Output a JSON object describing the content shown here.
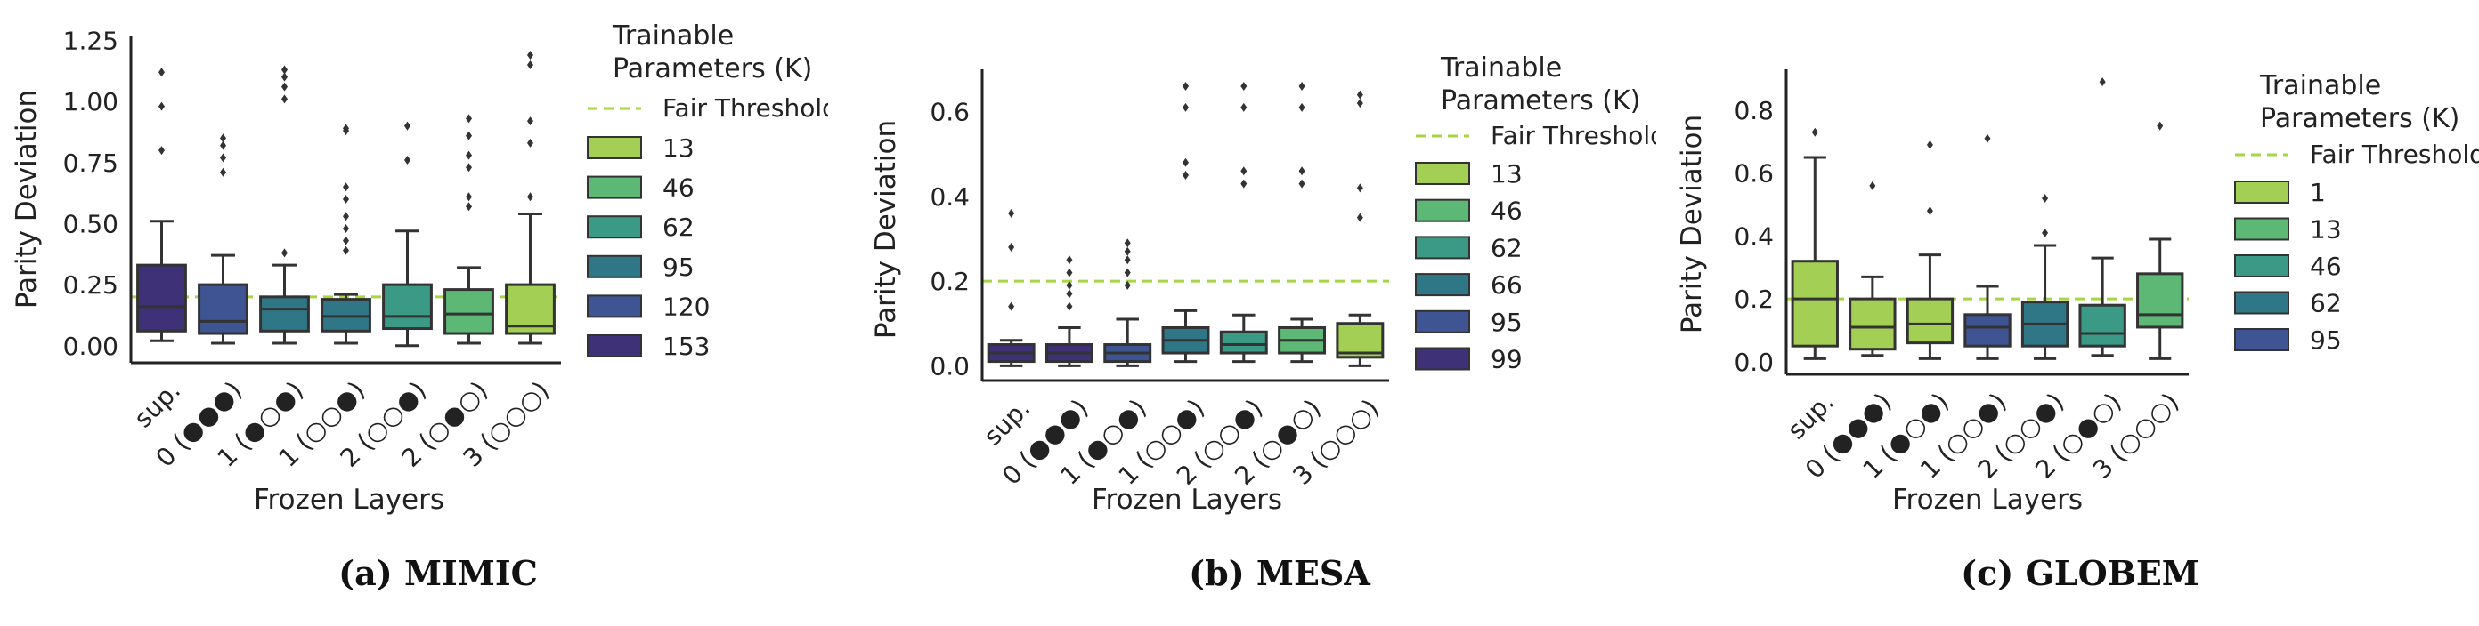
{
  "legend_title": [
    "Trainable",
    "Parameters (K)"
  ],
  "threshold_label": "Fair Threshold",
  "colors": {
    "threshold": "#a8d543",
    "pal6": [
      "#a4cf55",
      "#5cb874",
      "#3a9a86",
      "#2f7686",
      "#3f5593",
      "#3e3178"
    ],
    "pal5": [
      "#a4cf55",
      "#5cb874",
      "#3a9a86",
      "#2f7686",
      "#3f5593"
    ],
    "box_edge": "#333333"
  },
  "chart_data": [
    {
      "type": "box",
      "caption": "(a) MIMIC",
      "xlabel": "Frozen Layers",
      "ylabel": "Parity Deviation",
      "ylim": [
        -0.07,
        1.27
      ],
      "yticks": [
        "0.00",
        "0.25",
        "0.50",
        "0.75",
        "1.00",
        "1.25"
      ],
      "threshold": 0.2,
      "categories": [
        "sup.",
        "0 (●●●)",
        "1 (●○●)",
        "1 (○○●)",
        "2 (○○●)",
        "2 (○●○)",
        "3 (○○○)"
      ],
      "legend": [
        "13",
        "46",
        "62",
        "95",
        "120",
        "153"
      ],
      "boxes": [
        {
          "whislo": 0.02,
          "q1": 0.06,
          "med": 0.16,
          "q3": 0.33,
          "whishi": 0.51,
          "fliers": [
            0.8,
            0.98,
            1.12
          ],
          "color_index": 5
        },
        {
          "whislo": 0.01,
          "q1": 0.05,
          "med": 0.1,
          "q3": 0.25,
          "whishi": 0.37,
          "fliers": [
            0.71,
            0.77,
            0.82,
            0.85
          ],
          "color_index": 4
        },
        {
          "whislo": 0.01,
          "q1": 0.06,
          "med": 0.15,
          "q3": 0.2,
          "whishi": 0.33,
          "fliers": [
            0.38,
            1.01,
            1.06,
            1.1,
            1.13
          ],
          "color_index": 3
        },
        {
          "whislo": 0.01,
          "q1": 0.06,
          "med": 0.12,
          "q3": 0.19,
          "whishi": 0.21,
          "fliers": [
            0.39,
            0.43,
            0.48,
            0.53,
            0.6,
            0.65,
            0.88,
            0.89
          ],
          "color_index": 3
        },
        {
          "whislo": 0.0,
          "q1": 0.07,
          "med": 0.12,
          "q3": 0.25,
          "whishi": 0.47,
          "fliers": [
            0.76,
            0.9
          ],
          "color_index": 2
        },
        {
          "whislo": 0.01,
          "q1": 0.05,
          "med": 0.13,
          "q3": 0.23,
          "whishi": 0.32,
          "fliers": [
            0.57,
            0.61,
            0.73,
            0.78,
            0.86,
            0.93
          ],
          "color_index": 1
        },
        {
          "whislo": 0.01,
          "q1": 0.05,
          "med": 0.08,
          "q3": 0.25,
          "whishi": 0.54,
          "fliers": [
            0.61,
            0.83,
            0.92,
            1.15,
            1.19
          ],
          "color_index": 0
        }
      ]
    },
    {
      "type": "box",
      "caption": "(b) MESA",
      "xlabel": "Frozen Layers",
      "ylabel": "Parity Deviation",
      "ylim": [
        -0.035,
        0.7
      ],
      "yticks": [
        "0.0",
        "0.2",
        "0.4",
        "0.6"
      ],
      "threshold": 0.2,
      "categories": [
        "sup.",
        "0 (●●●)",
        "1 (●○●)",
        "1 (○○●)",
        "2 (○○●)",
        "2 (○●○)",
        "3 (○○○)"
      ],
      "legend": [
        "13",
        "46",
        "62",
        "66",
        "95",
        "99"
      ],
      "boxes": [
        {
          "whislo": 0.0,
          "q1": 0.01,
          "med": 0.03,
          "q3": 0.05,
          "whishi": 0.06,
          "fliers": [
            0.14,
            0.28,
            0.36
          ],
          "color_index": 5
        },
        {
          "whislo": 0.0,
          "q1": 0.01,
          "med": 0.03,
          "q3": 0.05,
          "whishi": 0.09,
          "fliers": [
            0.14,
            0.17,
            0.19,
            0.22,
            0.25
          ],
          "color_index": 5
        },
        {
          "whislo": 0.0,
          "q1": 0.01,
          "med": 0.03,
          "q3": 0.05,
          "whishi": 0.11,
          "fliers": [
            0.19,
            0.22,
            0.25,
            0.27,
            0.29
          ],
          "color_index": 4
        },
        {
          "whislo": 0.01,
          "q1": 0.03,
          "med": 0.06,
          "q3": 0.09,
          "whishi": 0.13,
          "fliers": [
            0.45,
            0.48,
            0.61,
            0.66
          ],
          "color_index": 3
        },
        {
          "whislo": 0.01,
          "q1": 0.03,
          "med": 0.05,
          "q3": 0.08,
          "whishi": 0.12,
          "fliers": [
            0.43,
            0.46,
            0.61,
            0.66
          ],
          "color_index": 2
        },
        {
          "whislo": 0.01,
          "q1": 0.03,
          "med": 0.06,
          "q3": 0.09,
          "whishi": 0.11,
          "fliers": [
            0.43,
            0.46,
            0.61,
            0.66
          ],
          "color_index": 1
        },
        {
          "whislo": 0.0,
          "q1": 0.02,
          "med": 0.03,
          "q3": 0.1,
          "whishi": 0.12,
          "fliers": [
            0.35,
            0.42,
            0.62,
            0.64
          ],
          "color_index": 0
        }
      ]
    },
    {
      "type": "box",
      "caption": "(c) GLOBEM",
      "xlabel": "Frozen Layers",
      "ylabel": "Parity Deviation",
      "ylim": [
        -0.04,
        0.93
      ],
      "yticks": [
        "0.0",
        "0.2",
        "0.4",
        "0.6",
        "0.8"
      ],
      "threshold": 0.2,
      "categories": [
        "sup.",
        "0 (●●●)",
        "1 (●○●)",
        "1 (○○●)",
        "2 (○○●)",
        "2 (○●○)",
        "3 (○○○)"
      ],
      "legend": [
        "1",
        "13",
        "46",
        "62",
        "95"
      ],
      "boxes": [
        {
          "whislo": 0.01,
          "q1": 0.05,
          "med": 0.2,
          "q3": 0.32,
          "whishi": 0.65,
          "fliers": [
            0.73
          ],
          "color_index": 0
        },
        {
          "whislo": 0.02,
          "q1": 0.04,
          "med": 0.11,
          "q3": 0.2,
          "whishi": 0.27,
          "fliers": [
            0.56
          ],
          "color_index": 0
        },
        {
          "whislo": 0.01,
          "q1": 0.06,
          "med": 0.12,
          "q3": 0.2,
          "whishi": 0.34,
          "fliers": [
            0.48,
            0.69
          ],
          "color_index": 0
        },
        {
          "whislo": 0.01,
          "q1": 0.05,
          "med": 0.11,
          "q3": 0.15,
          "whishi": 0.24,
          "fliers": [
            0.71
          ],
          "color_index": 4
        },
        {
          "whislo": 0.01,
          "q1": 0.05,
          "med": 0.12,
          "q3": 0.19,
          "whishi": 0.37,
          "fliers": [
            0.41,
            0.52
          ],
          "color_index": 3
        },
        {
          "whislo": 0.02,
          "q1": 0.05,
          "med": 0.09,
          "q3": 0.18,
          "whishi": 0.33,
          "fliers": [
            0.89
          ],
          "color_index": 2
        },
        {
          "whislo": 0.01,
          "q1": 0.11,
          "med": 0.15,
          "q3": 0.28,
          "whishi": 0.39,
          "fliers": [
            0.75
          ],
          "color_index": 1
        }
      ]
    }
  ]
}
